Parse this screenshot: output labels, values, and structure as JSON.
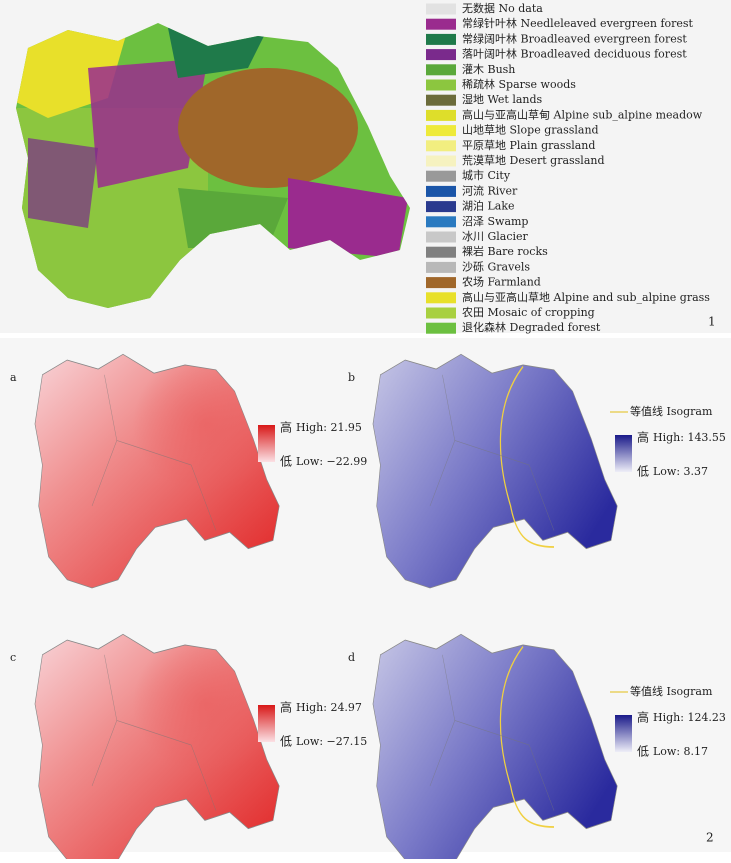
{
  "figure1": {
    "legend": [
      {
        "label": "无数据 No data",
        "color": "#e2e2e2"
      },
      {
        "label": "常绿针叶林 Needleleaved evergreen forest",
        "color": "#9a2b8e"
      },
      {
        "label": "常绿阔叶林 Broadleaved evergreen forest",
        "color": "#1f7a4a"
      },
      {
        "label": "落叶阔叶林 Broadleaved deciduous forest",
        "color": "#7a2a8c"
      },
      {
        "label": "灌木 Bush",
        "color": "#5aa83a"
      },
      {
        "label": "稀疏林 Sparse woods",
        "color": "#8cc63f"
      },
      {
        "label": "湿地 Wet lands",
        "color": "#6b6b3a"
      },
      {
        "label": "高山与亚高山草甸 Alpine sub_alpine meadow",
        "color": "#dede2a"
      },
      {
        "label": "山地草地 Slope grassland",
        "color": "#eeea3a"
      },
      {
        "label": "平原草地 Plain grassland",
        "color": "#f2ee80"
      },
      {
        "label": "荒漠草地 Desert grassland",
        "color": "#f6f2c0"
      },
      {
        "label": "城市 City",
        "color": "#999999"
      },
      {
        "label": "河流 River",
        "color": "#1a55a8"
      },
      {
        "label": "湖泊 Lake",
        "color": "#2a3a8e"
      },
      {
        "label": "沼泽 Swamp",
        "color": "#2a7ac0"
      },
      {
        "label": "冰川 Glacier",
        "color": "#c8c8c8"
      },
      {
        "label": "裸岩 Bare rocks",
        "color": "#808080"
      },
      {
        "label": "沙砾 Gravels",
        "color": "#b8b8b8"
      },
      {
        "label": "农场 Farmland",
        "color": "#a0672a"
      },
      {
        "label": "高山与亚高山草地 Alpine and sub_alpine grass",
        "color": "#e8e02a"
      },
      {
        "label": "农田 Mosaic of cropping",
        "color": "#a8d040"
      },
      {
        "label": "退化森林 Degraded forest",
        "color": "#6cc040"
      }
    ],
    "number": "1"
  },
  "figure2": {
    "isogram": "等值线  Isogram",
    "high_char": "高",
    "low_char": "低",
    "panels": [
      {
        "letter": "a",
        "high": "High: 21.95",
        "low": "Low: −22.99"
      },
      {
        "letter": "b",
        "high": "High: 143.55",
        "low": "Low: 3.37"
      },
      {
        "letter": "c",
        "high": "High: 24.97",
        "low": "Low: −27.15"
      },
      {
        "letter": "d",
        "high": "High: 124.23",
        "low": "Low: 8.17"
      }
    ],
    "number": "2"
  }
}
